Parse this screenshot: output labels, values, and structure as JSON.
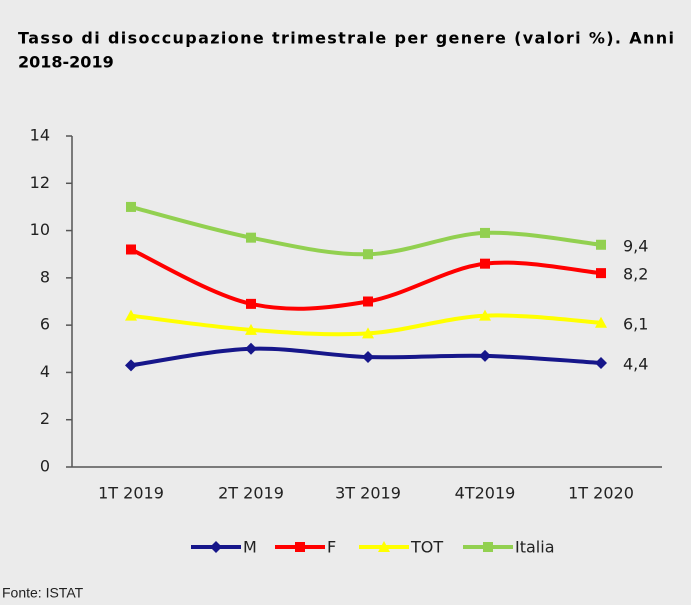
{
  "chart_data": {
    "type": "line",
    "title": [
      "Tasso di disoccupazione trimestrale per genere (valori %). Anni",
      "2018-2019"
    ],
    "source": "Fonte: ISTAT",
    "categories": [
      "1T 2019",
      "2T 2019",
      "3T 2019",
      "4T2019",
      "1T 2020"
    ],
    "series": [
      {
        "name": "M",
        "color": "#16168a",
        "marker": "diamond",
        "values": [
          4.3,
          5.0,
          4.65,
          4.7,
          4.4
        ],
        "value_labels": [
          null,
          null,
          null,
          null,
          "4,4"
        ]
      },
      {
        "name": "F",
        "color": "#ff0000",
        "marker": "square",
        "values": [
          9.2,
          6.9,
          7.0,
          8.6,
          8.2
        ],
        "value_labels": [
          null,
          null,
          null,
          null,
          "8,2"
        ]
      },
      {
        "name": "TOT",
        "color": "#ffff00",
        "marker": "triangle",
        "values": [
          6.4,
          5.8,
          5.65,
          6.4,
          6.1
        ],
        "value_labels": [
          null,
          null,
          null,
          null,
          "6,1"
        ]
      },
      {
        "name": "Italia",
        "color": "#92d050",
        "marker": "square",
        "values": [
          11.0,
          9.7,
          9.0,
          9.9,
          9.4
        ],
        "value_labels": [
          null,
          null,
          null,
          null,
          "9,4"
        ]
      }
    ],
    "ylim": [
      0,
      14
    ],
    "yticks": [
      0,
      2,
      4,
      6,
      8,
      10,
      12,
      14
    ],
    "legend": "bottom"
  }
}
